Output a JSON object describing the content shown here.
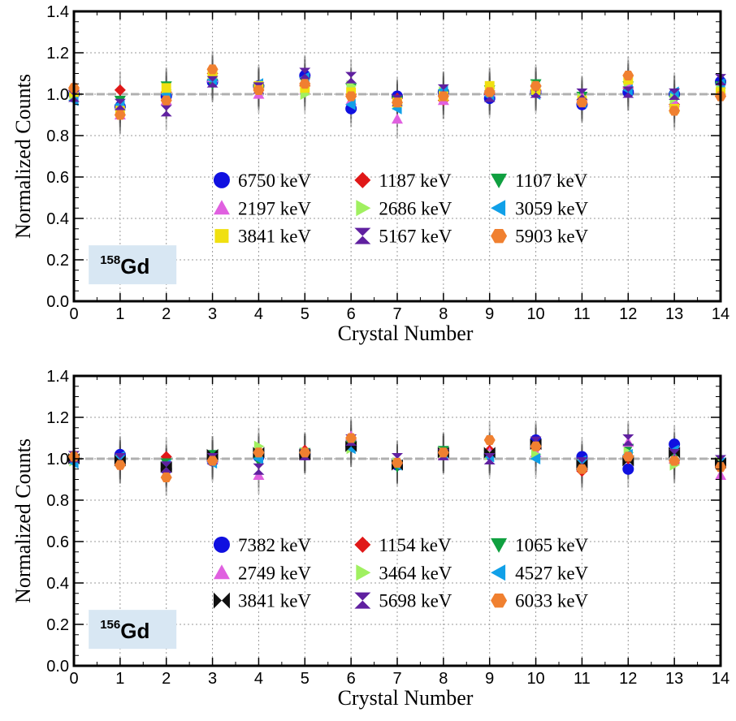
{
  "chart_data": [
    {
      "type": "scatter",
      "label": "158Gd",
      "label_mass": "158",
      "label_element": "Gd",
      "xlabel": "Crystal Number",
      "ylabel": "Normalized Counts",
      "xlim": [
        0,
        14
      ],
      "ylim": [
        0.0,
        1.4
      ],
      "x_ticks": [
        0,
        1,
        2,
        3,
        4,
        5,
        6,
        7,
        8,
        9,
        10,
        11,
        12,
        13,
        14
      ],
      "y_ticks": [
        0.0,
        0.2,
        0.4,
        0.6,
        0.8,
        1.0,
        1.2,
        1.4
      ],
      "y_tick_labels": [
        "0.0",
        "0.2",
        "0.4",
        "0.6",
        "0.8",
        "1.0",
        "1.2",
        "1.4"
      ],
      "grid": true,
      "reference_line": 1.0,
      "legend_position": "center",
      "series": [
        {
          "name": "6750 keV",
          "marker": "circle",
          "color": "#1010e0",
          "x": [
            0,
            1,
            2,
            3,
            4,
            5,
            6,
            7,
            8,
            9,
            10,
            11,
            12,
            13,
            14
          ],
          "y": [
            1.0,
            0.94,
            0.99,
            1.06,
            1.04,
            1.09,
            0.93,
            0.99,
            1.01,
            0.98,
            1.01,
            0.95,
            1.01,
            1.0,
            1.06
          ]
        },
        {
          "name": "1187 keV",
          "marker": "diamond",
          "color": "#e01818",
          "x": [
            0,
            1,
            2,
            3,
            4,
            5,
            6,
            7,
            8,
            9,
            10,
            11,
            12,
            13,
            14
          ],
          "y": [
            1.02,
            1.02,
            1.01,
            1.1,
            1.03,
            1.04,
            1.0,
            0.98,
            0.97,
            1.0,
            1.02,
            0.97,
            1.03,
            0.95,
            0.99
          ]
        },
        {
          "name": "1107 keV",
          "marker": "triangle-down",
          "color": "#10a040",
          "x": [
            0,
            1,
            2,
            3,
            4,
            5,
            6,
            7,
            8,
            9,
            10,
            11,
            12,
            13,
            14
          ],
          "y": [
            0.98,
            0.97,
            1.04,
            1.05,
            1.02,
            1.06,
            1.03,
            0.97,
            1.0,
            1.02,
            1.05,
            0.99,
            1.04,
            0.97,
            1.04
          ]
        },
        {
          "name": "2197 keV",
          "marker": "triangle-up",
          "color": "#e060e0",
          "x": [
            0,
            1,
            2,
            3,
            4,
            5,
            6,
            7,
            8,
            9,
            10,
            11,
            12,
            13,
            14
          ],
          "y": [
            1.04,
            0.9,
            0.97,
            1.08,
            1.0,
            1.02,
            0.97,
            0.88,
            0.97,
            1.01,
            1.03,
            0.99,
            1.05,
            0.96,
            1.02
          ]
        },
        {
          "name": "2686 keV",
          "marker": "triangle-right",
          "color": "#a0f060",
          "x": [
            0,
            1,
            2,
            3,
            4,
            5,
            6,
            7,
            8,
            9,
            10,
            11,
            12,
            13,
            14
          ],
          "y": [
            1.0,
            0.93,
            1.02,
            1.09,
            1.03,
            1.0,
            1.04,
            0.95,
            1.01,
            1.03,
            1.04,
            0.98,
            1.06,
            0.98,
            1.03
          ]
        },
        {
          "name": "3059 keV",
          "marker": "triangle-left",
          "color": "#10a0e8",
          "x": [
            0,
            1,
            2,
            3,
            4,
            5,
            6,
            7,
            8,
            9,
            10,
            11,
            12,
            13,
            14
          ],
          "y": [
            0.97,
            0.95,
            1.0,
            1.07,
            1.05,
            1.08,
            0.95,
            0.93,
            1.02,
            0.99,
            1.0,
            0.96,
            1.02,
            1.01,
            1.05
          ]
        },
        {
          "name": "3841 keV",
          "marker": "square",
          "color": "#f0e010",
          "x": [
            0,
            1,
            2,
            3,
            4,
            5,
            6,
            7,
            8,
            9,
            10,
            11,
            12,
            13,
            14
          ],
          "y": [
            1.01,
            0.92,
            1.03,
            1.1,
            1.04,
            1.03,
            1.01,
            0.96,
            0.99,
            1.04,
            1.02,
            0.97,
            1.07,
            0.93,
            1.01
          ]
        },
        {
          "name": "5167 keV",
          "marker": "hourglass",
          "color": "#6020a0",
          "x": [
            0,
            1,
            2,
            3,
            4,
            5,
            6,
            7,
            8,
            9,
            10,
            11,
            12,
            13,
            14
          ],
          "y": [
            0.99,
            0.95,
            0.92,
            1.06,
            1.03,
            1.1,
            1.08,
            0.97,
            1.02,
            0.99,
            1.01,
            1.0,
            1.01,
            1.0,
            1.07
          ]
        },
        {
          "name": "5903 keV",
          "marker": "hexagon",
          "color": "#f08030",
          "x": [
            0,
            1,
            2,
            3,
            4,
            5,
            6,
            7,
            8,
            9,
            10,
            11,
            12,
            13,
            14
          ],
          "y": [
            1.03,
            0.9,
            0.97,
            1.12,
            1.02,
            1.05,
            0.99,
            0.96,
            0.99,
            1.01,
            1.04,
            0.96,
            1.09,
            0.92,
            0.99
          ]
        }
      ]
    },
    {
      "type": "scatter",
      "label": "156Gd",
      "label_mass": "156",
      "label_element": "Gd",
      "xlabel": "Crystal Number",
      "ylabel": "Normalized Counts",
      "xlim": [
        0,
        14
      ],
      "ylim": [
        0.0,
        1.4
      ],
      "x_ticks": [
        0,
        1,
        2,
        3,
        4,
        5,
        6,
        7,
        8,
        9,
        10,
        11,
        12,
        13,
        14
      ],
      "y_ticks": [
        0.0,
        0.2,
        0.4,
        0.6,
        0.8,
        1.0,
        1.2,
        1.4
      ],
      "y_tick_labels": [
        "0.0",
        "0.2",
        "0.4",
        "0.6",
        "0.8",
        "1.0",
        "1.2",
        "1.4"
      ],
      "grid": true,
      "reference_line": 1.0,
      "legend_position": "center",
      "series": [
        {
          "name": "7382 keV",
          "marker": "circle",
          "color": "#1010e0",
          "x": [
            0,
            1,
            2,
            3,
            4,
            5,
            6,
            7,
            8,
            9,
            10,
            11,
            12,
            13,
            14
          ],
          "y": [
            1.0,
            1.02,
            0.95,
            0.99,
            1.01,
            1.02,
            1.06,
            0.97,
            1.03,
            1.02,
            1.09,
            1.01,
            0.95,
            1.07,
            0.98
          ]
        },
        {
          "name": "1154 keV",
          "marker": "diamond",
          "color": "#e01818",
          "x": [
            0,
            1,
            2,
            3,
            4,
            5,
            6,
            7,
            8,
            9,
            10,
            11,
            12,
            13,
            14
          ],
          "y": [
            1.01,
            0.97,
            1.01,
            1.0,
            1.02,
            1.04,
            1.09,
            0.98,
            1.02,
            1.04,
            1.05,
            0.94,
            1.0,
            0.98,
            0.96
          ]
        },
        {
          "name": "1065 keV",
          "marker": "triangle-down",
          "color": "#10a040",
          "x": [
            0,
            1,
            2,
            3,
            4,
            5,
            6,
            7,
            8,
            9,
            10,
            11,
            12,
            13,
            14
          ],
          "y": [
            1.0,
            0.98,
            0.98,
            1.02,
            0.99,
            1.03,
            1.07,
            0.96,
            1.04,
            1.02,
            1.06,
            0.96,
            1.05,
            1.01,
            0.97
          ]
        },
        {
          "name": "2749 keV",
          "marker": "triangle-up",
          "color": "#e060e0",
          "x": [
            0,
            1,
            2,
            3,
            4,
            5,
            6,
            7,
            8,
            9,
            10,
            11,
            12,
            13,
            14
          ],
          "y": [
            1.02,
            0.99,
            0.93,
            1.0,
            0.92,
            1.03,
            1.11,
            0.99,
            1.02,
            1.03,
            1.03,
            0.97,
            1.08,
            1.0,
            0.92
          ]
        },
        {
          "name": "3464 keV",
          "marker": "triangle-right",
          "color": "#a0f060",
          "x": [
            0,
            1,
            2,
            3,
            4,
            5,
            6,
            7,
            8,
            9,
            10,
            11,
            12,
            13,
            14
          ],
          "y": [
            0.99,
            1.0,
            0.96,
            1.01,
            1.06,
            1.03,
            1.05,
            0.98,
            1.03,
            1.02,
            1.02,
            0.98,
            1.03,
            0.97,
            0.99
          ]
        },
        {
          "name": "4527 keV",
          "marker": "triangle-left",
          "color": "#10a0e8",
          "x": [
            0,
            1,
            2,
            3,
            4,
            5,
            6,
            7,
            8,
            9,
            10,
            11,
            12,
            13,
            14
          ],
          "y": [
            0.98,
            1.01,
            0.97,
            0.98,
            1.0,
            1.02,
            1.05,
            0.97,
            1.02,
            1.01,
            1.0,
            0.99,
            1.02,
            1.04,
            0.98
          ]
        },
        {
          "name": "3841 keV",
          "marker": "bowtie",
          "color": "#101010",
          "x": [
            0,
            1,
            2,
            3,
            4,
            5,
            6,
            7,
            8,
            9,
            10,
            11,
            12,
            13,
            14
          ],
          "y": [
            1.0,
            0.99,
            0.96,
            1.02,
            1.03,
            1.02,
            1.06,
            0.97,
            1.03,
            1.03,
            1.07,
            0.97,
            0.99,
            1.03,
            0.98
          ]
        },
        {
          "name": "5698 keV",
          "marker": "hourglass",
          "color": "#6020a0",
          "x": [
            0,
            1,
            2,
            3,
            4,
            5,
            6,
            7,
            8,
            9,
            10,
            11,
            12,
            13,
            14
          ],
          "y": [
            1.01,
            1.0,
            0.96,
            1.0,
            0.95,
            1.02,
            1.09,
            1.0,
            1.02,
            1.0,
            1.08,
            0.98,
            1.09,
            1.02,
            0.99
          ]
        },
        {
          "name": "6033 keV",
          "marker": "hexagon",
          "color": "#f08030",
          "x": [
            0,
            1,
            2,
            3,
            4,
            5,
            6,
            7,
            8,
            9,
            10,
            11,
            12,
            13,
            14
          ],
          "y": [
            1.01,
            0.97,
            0.91,
            0.99,
            1.03,
            1.03,
            1.1,
            0.98,
            1.03,
            1.09,
            1.06,
            0.95,
            1.01,
            0.99,
            0.96
          ]
        }
      ]
    }
  ]
}
